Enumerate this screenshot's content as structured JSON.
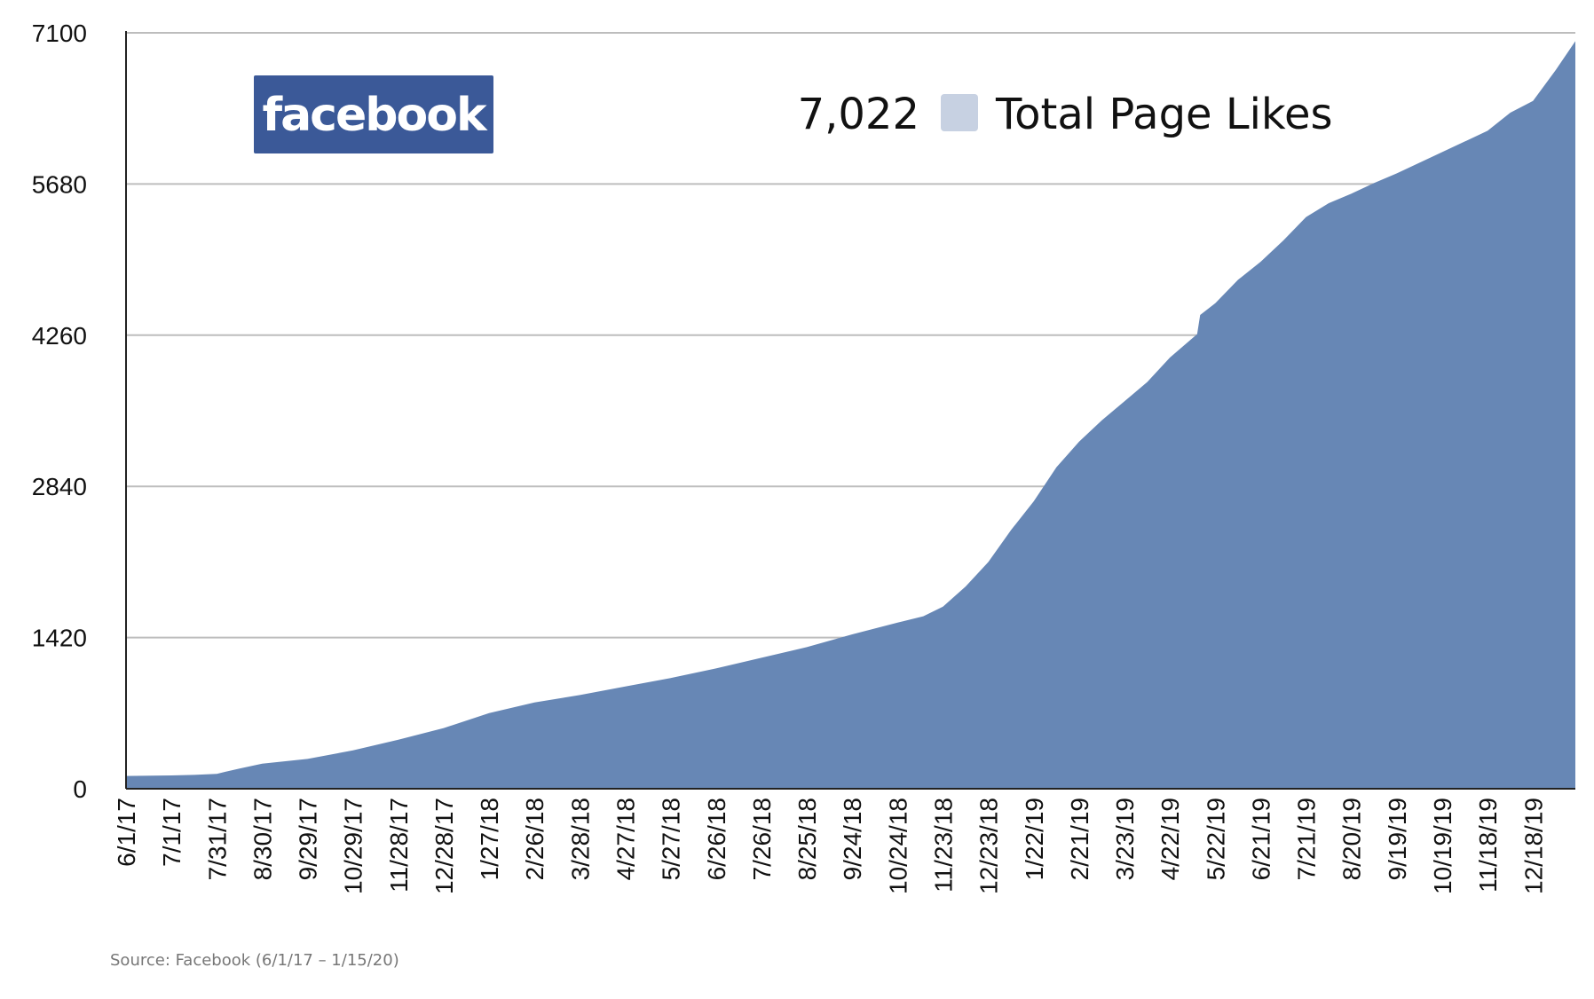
{
  "colors": {
    "area": "#6787b5",
    "legend_swatch": "#c7d1e2",
    "logo_bg": "#3b5998",
    "grid": "#bdbdbd",
    "axis": "#222222"
  },
  "logo": {
    "text": "facebook"
  },
  "legend": {
    "value": "7,022",
    "label": "Total Page Likes"
  },
  "source": "Source: Facebook (6/1/17 – 1/15/20)",
  "chart_data": {
    "type": "area",
    "title": "",
    "xlabel": "",
    "ylabel": "",
    "ylim": [
      0,
      7100
    ],
    "yticks": [
      0,
      1420,
      2840,
      4260,
      5680,
      7100
    ],
    "xlim": [
      "2017-06-01",
      "2020-01-15"
    ],
    "xticks": [
      {
        "date": "2017-06-01",
        "label": "6/1/17"
      },
      {
        "date": "2017-07-01",
        "label": "7/1/17"
      },
      {
        "date": "2017-07-31",
        "label": "7/31/17"
      },
      {
        "date": "2017-08-30",
        "label": "8/30/17"
      },
      {
        "date": "2017-09-29",
        "label": "9/29/17"
      },
      {
        "date": "2017-10-29",
        "label": "10/29/17"
      },
      {
        "date": "2017-11-28",
        "label": "11/28/17"
      },
      {
        "date": "2017-12-28",
        "label": "12/28/17"
      },
      {
        "date": "2018-01-27",
        "label": "1/27/18"
      },
      {
        "date": "2018-02-26",
        "label": "2/26/18"
      },
      {
        "date": "2018-03-28",
        "label": "3/28/18"
      },
      {
        "date": "2018-04-27",
        "label": "4/27/18"
      },
      {
        "date": "2018-05-27",
        "label": "5/27/18"
      },
      {
        "date": "2018-06-26",
        "label": "6/26/18"
      },
      {
        "date": "2018-07-26",
        "label": "7/26/18"
      },
      {
        "date": "2018-08-25",
        "label": "8/25/18"
      },
      {
        "date": "2018-09-24",
        "label": "9/24/18"
      },
      {
        "date": "2018-10-24",
        "label": "10/24/18"
      },
      {
        "date": "2018-11-23",
        "label": "11/23/18"
      },
      {
        "date": "2018-12-23",
        "label": "12/23/18"
      },
      {
        "date": "2019-01-22",
        "label": "1/22/19"
      },
      {
        "date": "2019-02-21",
        "label": "2/21/19"
      },
      {
        "date": "2019-03-23",
        "label": "3/23/19"
      },
      {
        "date": "2019-04-22",
        "label": "4/22/19"
      },
      {
        "date": "2019-05-22",
        "label": "5/22/19"
      },
      {
        "date": "2019-06-21",
        "label": "6/21/19"
      },
      {
        "date": "2019-07-21",
        "label": "7/21/19"
      },
      {
        "date": "2019-08-20",
        "label": "8/20/19"
      },
      {
        "date": "2019-09-19",
        "label": "9/19/19"
      },
      {
        "date": "2019-10-19",
        "label": "10/19/19"
      },
      {
        "date": "2019-11-18",
        "label": "11/18/19"
      },
      {
        "date": "2019-12-18",
        "label": "12/18/19"
      }
    ],
    "grid": true,
    "series": [
      {
        "name": "Total Page Likes",
        "points": [
          {
            "x": "2017-06-01",
            "y": 120
          },
          {
            "x": "2017-07-01",
            "y": 125
          },
          {
            "x": "2017-07-16",
            "y": 130
          },
          {
            "x": "2017-07-31",
            "y": 140
          },
          {
            "x": "2017-08-15",
            "y": 190
          },
          {
            "x": "2017-08-30",
            "y": 235
          },
          {
            "x": "2017-09-29",
            "y": 280
          },
          {
            "x": "2017-10-29",
            "y": 360
          },
          {
            "x": "2017-11-28",
            "y": 460
          },
          {
            "x": "2017-12-28",
            "y": 570
          },
          {
            "x": "2018-01-27",
            "y": 710
          },
          {
            "x": "2018-02-26",
            "y": 810
          },
          {
            "x": "2018-03-28",
            "y": 880
          },
          {
            "x": "2018-04-27",
            "y": 960
          },
          {
            "x": "2018-05-27",
            "y": 1040
          },
          {
            "x": "2018-06-26",
            "y": 1130
          },
          {
            "x": "2018-07-26",
            "y": 1230
          },
          {
            "x": "2018-08-25",
            "y": 1330
          },
          {
            "x": "2018-09-24",
            "y": 1450
          },
          {
            "x": "2018-10-24",
            "y": 1560
          },
          {
            "x": "2018-11-10",
            "y": 1620
          },
          {
            "x": "2018-11-23",
            "y": 1710
          },
          {
            "x": "2018-12-08",
            "y": 1900
          },
          {
            "x": "2018-12-23",
            "y": 2130
          },
          {
            "x": "2019-01-07",
            "y": 2430
          },
          {
            "x": "2019-01-22",
            "y": 2700
          },
          {
            "x": "2019-02-06",
            "y": 3020
          },
          {
            "x": "2019-02-21",
            "y": 3260
          },
          {
            "x": "2019-03-08",
            "y": 3460
          },
          {
            "x": "2019-03-23",
            "y": 3640
          },
          {
            "x": "2019-04-07",
            "y": 3820
          },
          {
            "x": "2019-04-22",
            "y": 4050
          },
          {
            "x": "2019-05-10",
            "y": 4270
          },
          {
            "x": "2019-05-12",
            "y": 4450
          },
          {
            "x": "2019-05-22",
            "y": 4560
          },
          {
            "x": "2019-06-06",
            "y": 4780
          },
          {
            "x": "2019-06-21",
            "y": 4950
          },
          {
            "x": "2019-07-06",
            "y": 5150
          },
          {
            "x": "2019-07-21",
            "y": 5370
          },
          {
            "x": "2019-08-05",
            "y": 5500
          },
          {
            "x": "2019-08-20",
            "y": 5590
          },
          {
            "x": "2019-09-04",
            "y": 5690
          },
          {
            "x": "2019-09-19",
            "y": 5780
          },
          {
            "x": "2019-10-04",
            "y": 5880
          },
          {
            "x": "2019-10-19",
            "y": 5980
          },
          {
            "x": "2019-11-03",
            "y": 6080
          },
          {
            "x": "2019-11-18",
            "y": 6180
          },
          {
            "x": "2019-12-03",
            "y": 6350
          },
          {
            "x": "2019-12-18",
            "y": 6460
          },
          {
            "x": "2020-01-02",
            "y": 6750
          },
          {
            "x": "2020-01-15",
            "y": 7022
          }
        ]
      }
    ]
  }
}
